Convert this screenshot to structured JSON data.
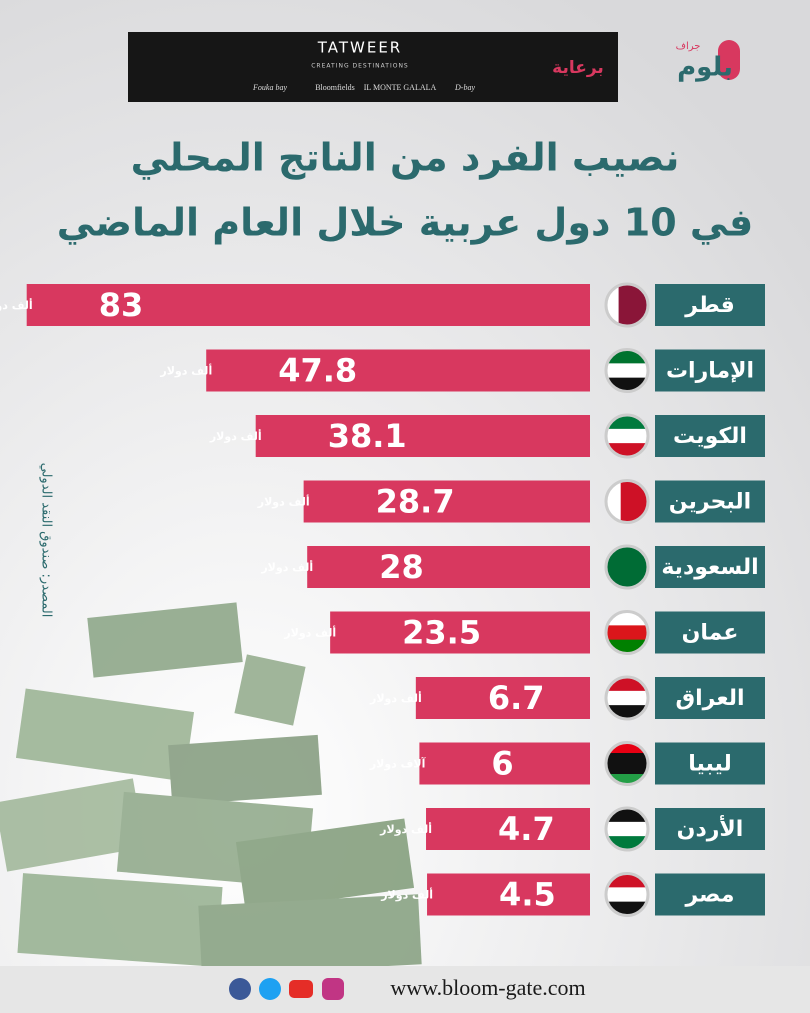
{
  "header": {
    "sponsor_label": "برعاية",
    "brand": "TATWEER",
    "tagline": "CREATING DESTINATIONS",
    "partners": [
      "Fouka bay",
      "Bloomfields",
      "IL MONTE GALALA",
      "D-bay"
    ]
  },
  "logo": {
    "name": "بلوم",
    "sub": "جراف"
  },
  "chart_data": {
    "type": "bar",
    "orientation": "horizontal",
    "title": [
      "نصيب الفرد من الناتج المحلي",
      "في 10 دول عربية خلال العام الماضي"
    ],
    "categories": [
      "قطر",
      "الإمارات",
      "الكويت",
      "البحرين",
      "السعودية",
      "عمان",
      "العراق",
      "ليبيا",
      "الأردن",
      "مصر"
    ],
    "values": [
      83,
      47.8,
      38.1,
      28.7,
      28,
      23.5,
      6.7,
      6,
      4.7,
      4.5
    ],
    "unit_labels": [
      "ألف دولار",
      "ألف دولار",
      "ألف دولار",
      "ألف دولار",
      "ألف دولار",
      "ألف دولار",
      "ألف دولار",
      "آلاف دولار",
      "ألف دولار",
      "ألف دولار"
    ],
    "color": "#d8385f",
    "label_color": "#2b6a6d",
    "source": "المصدر: صندوق النقد الدولي"
  },
  "footer": {
    "website": "www.bloom-gate.com"
  }
}
